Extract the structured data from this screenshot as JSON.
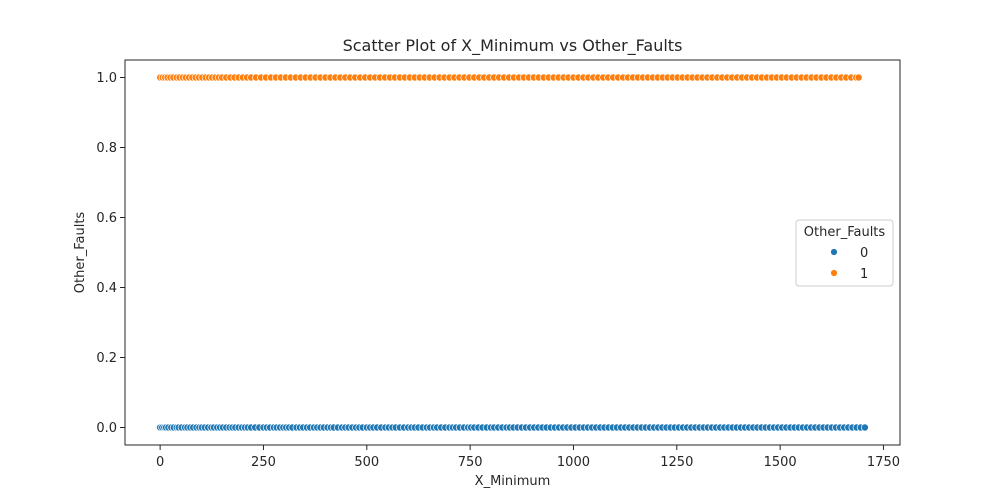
{
  "chart_data": {
    "type": "scatter",
    "title": "Scatter Plot of X_Minimum vs Other_Faults",
    "xlabel": "X_Minimum",
    "ylabel": "Other_Faults",
    "xlim": [
      -85,
      1790
    ],
    "ylim": [
      -0.05,
      1.05
    ],
    "xticks": [
      0,
      250,
      500,
      750,
      1000,
      1250,
      1500,
      1750
    ],
    "xtick_labels": [
      "0",
      "250",
      "500",
      "750",
      "1000",
      "1250",
      "1500",
      "1750"
    ],
    "yticks": [
      0.0,
      0.2,
      0.4,
      0.6,
      0.8,
      1.0
    ],
    "ytick_labels": [
      "0.0",
      "0.2",
      "0.4",
      "0.6",
      "0.8",
      "1.0"
    ],
    "grid": false,
    "legend": {
      "title": "Other_Faults",
      "position": "center-right"
    },
    "series": [
      {
        "name": "0",
        "color": "#1f77b4",
        "x": [
          0,
          5,
          10,
          14,
          20,
          27,
          33,
          40,
          45,
          52,
          60,
          66,
          73,
          80,
          88,
          95,
          101,
          108,
          116,
          124,
          130,
          138,
          145,
          152,
          160,
          168,
          175,
          182,
          190,
          198,
          205,
          212,
          220,
          230,
          240,
          250,
          258,
          266,
          275,
          282,
          290,
          298,
          305,
          312,
          320,
          330,
          338,
          346,
          355,
          363,
          372,
          380,
          388,
          396,
          405,
          413,
          420,
          430,
          440,
          448,
          456,
          465,
          474,
          482,
          490,
          500,
          508,
          516,
          525,
          535,
          545,
          553,
          562,
          570,
          580,
          590,
          600,
          608,
          616,
          625,
          635,
          645,
          653,
          662,
          670,
          680,
          690,
          700,
          708,
          716,
          725,
          735,
          745,
          752,
          760,
          770,
          780,
          790,
          800,
          808,
          818,
          828,
          838,
          846,
          855,
          865,
          875,
          885,
          895,
          905,
          915,
          925,
          935,
          945,
          955,
          965,
          975,
          985,
          995,
          1005,
          1015,
          1025,
          1035,
          1045,
          1055,
          1065,
          1075,
          1085,
          1095,
          1105,
          1115,
          1125,
          1135,
          1145,
          1155,
          1165,
          1175,
          1185,
          1195,
          1205,
          1215,
          1225,
          1235,
          1245,
          1255,
          1265,
          1275,
          1285,
          1295,
          1305,
          1315,
          1325,
          1335,
          1345,
          1355,
          1365,
          1375,
          1385,
          1395,
          1405,
          1415,
          1425,
          1435,
          1445,
          1455,
          1465,
          1475,
          1485,
          1495,
          1505,
          1515,
          1525,
          1535,
          1545,
          1555,
          1565,
          1575,
          1585,
          1595,
          1605,
          1615,
          1625,
          1635,
          1645,
          1655,
          1665,
          1675,
          1685,
          1695,
          1705
        ],
        "y_value": 0
      },
      {
        "name": "1",
        "color": "#ff7f0e",
        "x": [
          0,
          6,
          12,
          18,
          25,
          32,
          40,
          47,
          55,
          62,
          70,
          78,
          86,
          94,
          102,
          110,
          118,
          126,
          134,
          142,
          150,
          160,
          170,
          180,
          190,
          200,
          210,
          220,
          232,
          244,
          256,
          268,
          280,
          292,
          304,
          316,
          328,
          340,
          352,
          364,
          376,
          388,
          400,
          412,
          424,
          436,
          448,
          460,
          472,
          484,
          496,
          508,
          520,
          532,
          544,
          556,
          568,
          580,
          592,
          604,
          616,
          628,
          640,
          652,
          664,
          676,
          688,
          700,
          712,
          724,
          736,
          748,
          760,
          772,
          784,
          796,
          808,
          820,
          832,
          844,
          856,
          868,
          880,
          892,
          904,
          916,
          928,
          940,
          952,
          964,
          976,
          988,
          1000,
          1012,
          1024,
          1036,
          1048,
          1060,
          1072,
          1084,
          1096,
          1108,
          1120,
          1132,
          1144,
          1156,
          1168,
          1180,
          1192,
          1204,
          1216,
          1228,
          1240,
          1252,
          1264,
          1276,
          1288,
          1300,
          1312,
          1324,
          1336,
          1348,
          1360,
          1372,
          1384,
          1396,
          1408,
          1420,
          1432,
          1444,
          1456,
          1468,
          1480,
          1492,
          1504,
          1516,
          1528,
          1540,
          1552,
          1564,
          1576,
          1588,
          1600,
          1612,
          1624,
          1636,
          1648,
          1660,
          1672,
          1684,
          1690
        ],
        "y_value": 1
      }
    ]
  }
}
